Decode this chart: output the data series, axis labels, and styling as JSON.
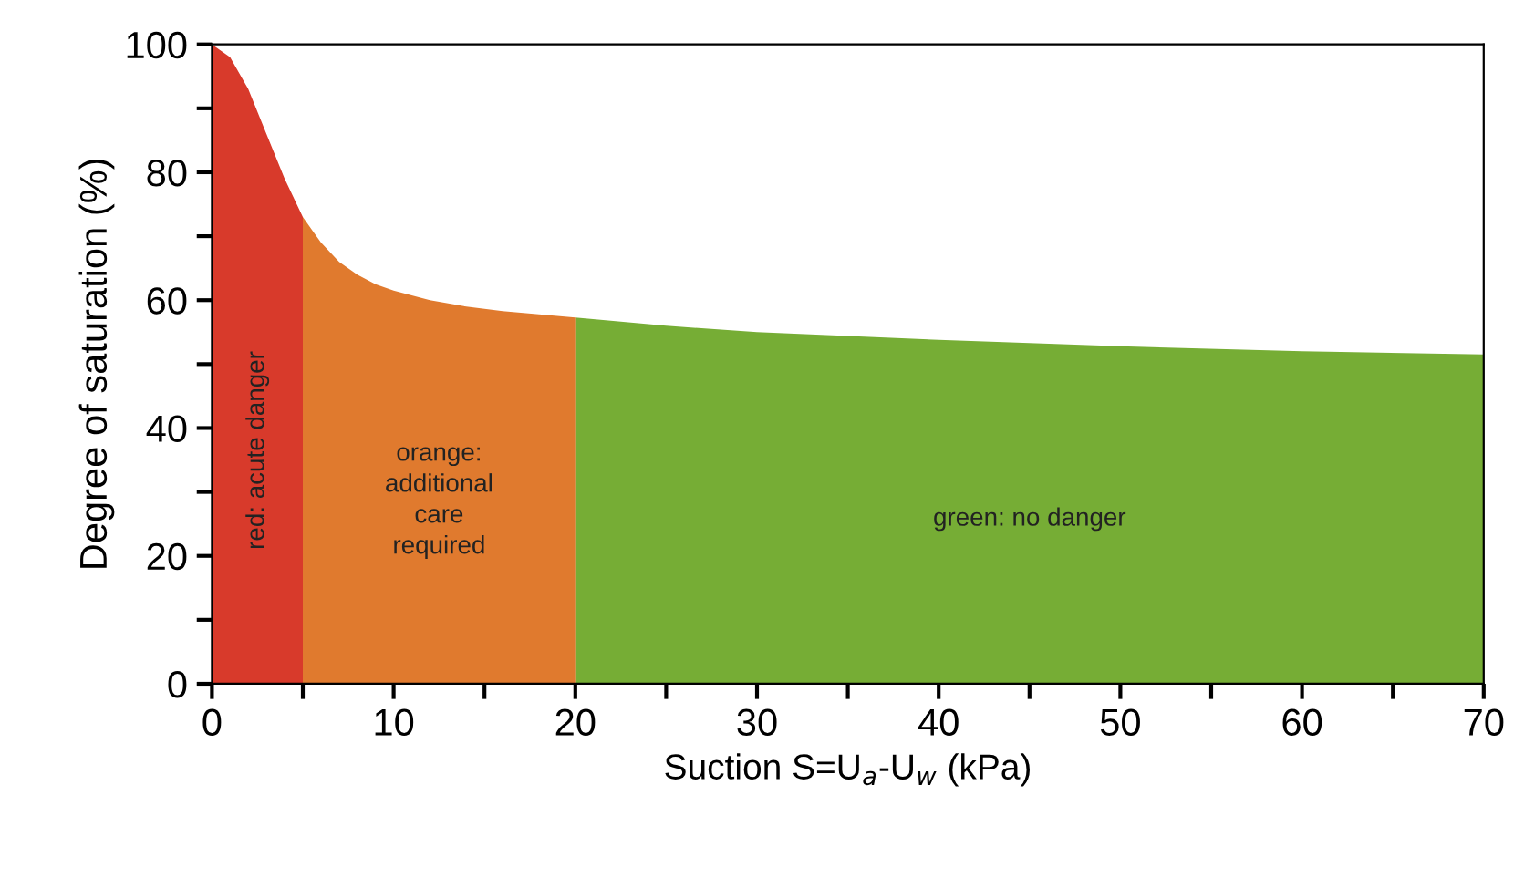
{
  "chart_data": {
    "type": "area",
    "xlabel": "Suction S=U$_{a}$-U$_{w}$ (kPa)",
    "ylabel": "Degree of saturation (%)",
    "xlim": [
      0,
      70
    ],
    "ylim": [
      0,
      100
    ],
    "xticks": [
      0,
      {
        "value": 5,
        "label": null
      },
      10,
      {
        "value": 15,
        "label": null
      },
      20,
      {
        "value": 25,
        "label": null
      },
      30,
      {
        "value": 35,
        "label": null
      },
      40,
      {
        "value": 45,
        "label": null
      },
      50,
      {
        "value": 55,
        "label": null
      },
      60,
      {
        "value": 65,
        "label": null
      },
      70
    ],
    "yticks": [
      0,
      {
        "value": 10,
        "label": null
      },
      20,
      {
        "value": 30,
        "label": null
      },
      40,
      {
        "value": 50,
        "label": null
      },
      60,
      {
        "value": 70,
        "label": null
      },
      80,
      {
        "value": 90,
        "label": null
      },
      100
    ],
    "grid": false,
    "series": [
      {
        "name": "red: acute danger",
        "color": "#d83a2b",
        "x": [
          0,
          1,
          2,
          3,
          4,
          5
        ],
        "values": [
          100,
          98,
          93,
          86,
          79,
          73
        ]
      },
      {
        "name": "orange:\nadditional\ncare\nrequired",
        "color": "#e07a2e",
        "x": [
          5,
          6,
          7,
          8,
          9,
          10,
          12,
          14,
          16,
          18,
          20
        ],
        "values": [
          73,
          69,
          66,
          64,
          62.5,
          61.5,
          60,
          59,
          58.3,
          57.8,
          57.3
        ]
      },
      {
        "name": "green: no danger",
        "color": "#76ad35",
        "x": [
          20,
          25,
          30,
          40,
          50,
          60,
          70
        ],
        "values": [
          57.3,
          56,
          55,
          53.8,
          52.8,
          52,
          51.5
        ]
      }
    ]
  }
}
